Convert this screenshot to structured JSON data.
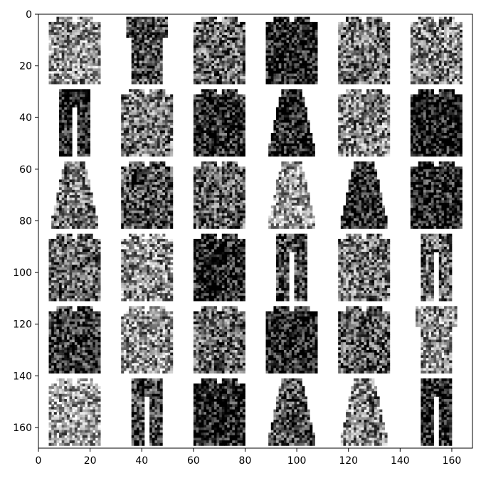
{
  "chart_data": {
    "type": "heatmap",
    "title": "",
    "xlabel": "",
    "ylabel": "",
    "xlim": [
      0,
      168
    ],
    "ylim": [
      168,
      0
    ],
    "x_ticks": [
      "0",
      "20",
      "40",
      "60",
      "80",
      "100",
      "120",
      "140",
      "160"
    ],
    "y_ticks": [
      "0",
      "20",
      "40",
      "60",
      "80",
      "100",
      "120",
      "140",
      "160"
    ],
    "colormap": "gray_r",
    "grid": false,
    "grid_rows": 6,
    "grid_cols": 6,
    "tile_size": 28,
    "tiles": [
      [
        "shirt",
        "tshirt",
        "pullover",
        "pullover",
        "shirt",
        "pullover"
      ],
      [
        "trouser",
        "coat",
        "pullover",
        "dress",
        "coat",
        "coat"
      ],
      [
        "dress",
        "coat",
        "coat",
        "dress",
        "dress",
        "coat"
      ],
      [
        "shirt",
        "pullover",
        "pullover",
        "trouser",
        "pullover",
        "trouser"
      ],
      [
        "coat",
        "shirt",
        "shirt",
        "pullover",
        "pullover",
        "tshirt"
      ],
      [
        "shirt",
        "trouser",
        "coat",
        "dress",
        "dress",
        "trouser"
      ]
    ],
    "tile_darkness": [
      [
        0.45,
        0.7,
        0.6,
        0.9,
        0.55,
        0.5
      ],
      [
        0.9,
        0.55,
        0.85,
        0.9,
        0.5,
        0.95
      ],
      [
        0.55,
        0.7,
        0.65,
        0.4,
        0.85,
        0.9
      ],
      [
        0.6,
        0.45,
        0.9,
        0.75,
        0.55,
        0.6
      ],
      [
        0.8,
        0.45,
        0.6,
        0.9,
        0.65,
        0.45
      ],
      [
        0.4,
        0.75,
        0.9,
        0.7,
        0.5,
        0.9
      ]
    ]
  }
}
